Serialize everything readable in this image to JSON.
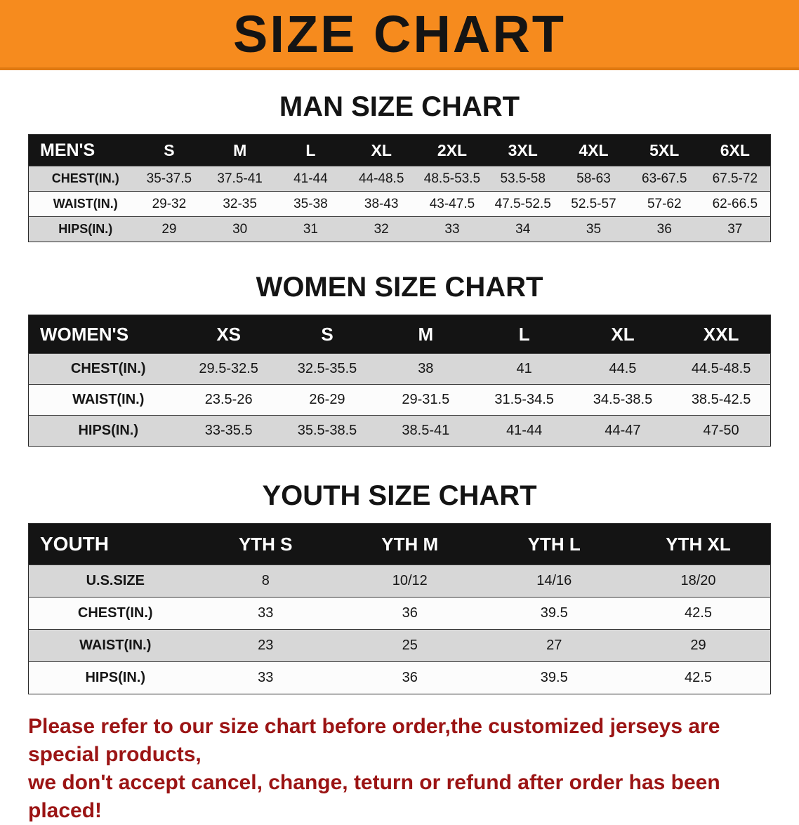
{
  "colors": {
    "banner_bg": "#f68b1e",
    "header_row_bg": "#141414",
    "row_alt_bg": "#d7d7d7",
    "footer_text": "#9b1414"
  },
  "banner": {
    "title": "SIZE CHART"
  },
  "sections": [
    {
      "name": "mens",
      "title": "MAN SIZE CHART",
      "table": {
        "header": [
          "MEN'S",
          "S",
          "M",
          "L",
          "XL",
          "2XL",
          "3XL",
          "4XL",
          "5XL",
          "6XL"
        ],
        "rows": [
          {
            "label": "CHEST(IN.)",
            "values": [
              "35-37.5",
              "37.5-41",
              "41-44",
              "44-48.5",
              "48.5-53.5",
              "53.5-58",
              "58-63",
              "63-67.5",
              "67.5-72"
            ]
          },
          {
            "label": "WAIST(IN.)",
            "values": [
              "29-32",
              "32-35",
              "35-38",
              "38-43",
              "43-47.5",
              "47.5-52.5",
              "52.5-57",
              "57-62",
              "62-66.5"
            ]
          },
          {
            "label": "HIPS(IN.)",
            "values": [
              "29",
              "30",
              "31",
              "32",
              "33",
              "34",
              "35",
              "36",
              "37"
            ]
          }
        ]
      }
    },
    {
      "name": "womens",
      "title": "WOMEN SIZE CHART",
      "table": {
        "header": [
          "WOMEN'S",
          "XS",
          "S",
          "M",
          "L",
          "XL",
          "XXL"
        ],
        "rows": [
          {
            "label": "CHEST(IN.)",
            "values": [
              "29.5-32.5",
              "32.5-35.5",
              "38",
              "41",
              "44.5",
              "44.5-48.5"
            ]
          },
          {
            "label": "WAIST(IN.)",
            "values": [
              "23.5-26",
              "26-29",
              "29-31.5",
              "31.5-34.5",
              "34.5-38.5",
              "38.5-42.5"
            ]
          },
          {
            "label": "HIPS(IN.)",
            "values": [
              "33-35.5",
              "35.5-38.5",
              "38.5-41",
              "41-44",
              "44-47",
              "47-50"
            ]
          }
        ]
      }
    },
    {
      "name": "youth",
      "title": "YOUTH SIZE CHART",
      "table": {
        "header": [
          "YOUTH",
          "YTH S",
          "YTH M",
          "YTH L",
          "YTH XL"
        ],
        "rows": [
          {
            "label": "U.S.SIZE",
            "values": [
              "8",
              "10/12",
              "14/16",
              "18/20"
            ]
          },
          {
            "label": "CHEST(IN.)",
            "values": [
              "33",
              "36",
              "39.5",
              "42.5"
            ]
          },
          {
            "label": "WAIST(IN.)",
            "values": [
              "23",
              "25",
              "27",
              "29"
            ]
          },
          {
            "label": "HIPS(IN.)",
            "values": [
              "33",
              "36",
              "39.5",
              "42.5"
            ]
          }
        ]
      }
    }
  ],
  "footer": {
    "line1": "Please refer to our size chart before order,the customized jerseys are special products,",
    "line2": "we don't accept cancel, change, teturn or refund after order has been placed!"
  }
}
